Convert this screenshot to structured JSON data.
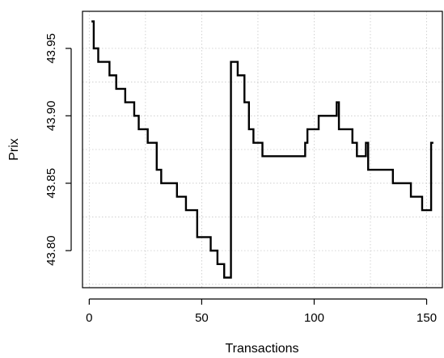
{
  "chart_data": {
    "type": "line",
    "title": "",
    "xlabel": "Transactions",
    "ylabel": "Prix",
    "xlim": [
      -3,
      157
    ],
    "ylim": [
      43.7725,
      43.9775
    ],
    "x_ticks": [
      0,
      50,
      100,
      150
    ],
    "x_tick_labels": [
      "0",
      "50",
      "100",
      "150"
    ],
    "y_ticks": [
      43.8,
      43.85,
      43.9,
      43.95
    ],
    "y_tick_labels": [
      "43.80",
      "43.85",
      "43.90",
      "43.95"
    ],
    "grid": true,
    "line_color": "#000000",
    "step": "post",
    "series": [
      {
        "points": [
          [
            1,
            43.97
          ],
          [
            2,
            43.95
          ],
          [
            3,
            43.95
          ],
          [
            4,
            43.94
          ],
          [
            5,
            43.94
          ],
          [
            6,
            43.94
          ],
          [
            7,
            43.94
          ],
          [
            8,
            43.94
          ],
          [
            9,
            43.93
          ],
          [
            10,
            43.93
          ],
          [
            11,
            43.93
          ],
          [
            12,
            43.92
          ],
          [
            13,
            43.92
          ],
          [
            14,
            43.92
          ],
          [
            15,
            43.92
          ],
          [
            16,
            43.91
          ],
          [
            17,
            43.91
          ],
          [
            18,
            43.91
          ],
          [
            19,
            43.91
          ],
          [
            20,
            43.9
          ],
          [
            21,
            43.9
          ],
          [
            22,
            43.89
          ],
          [
            23,
            43.89
          ],
          [
            24,
            43.89
          ],
          [
            25,
            43.89
          ],
          [
            26,
            43.88
          ],
          [
            27,
            43.88
          ],
          [
            28,
            43.88
          ],
          [
            29,
            43.88
          ],
          [
            30,
            43.86
          ],
          [
            31,
            43.86
          ],
          [
            32,
            43.85
          ],
          [
            33,
            43.85
          ],
          [
            34,
            43.85
          ],
          [
            35,
            43.85
          ],
          [
            36,
            43.85
          ],
          [
            37,
            43.85
          ],
          [
            38,
            43.85
          ],
          [
            39,
            43.84
          ],
          [
            40,
            43.84
          ],
          [
            41,
            43.84
          ],
          [
            42,
            43.84
          ],
          [
            43,
            43.83
          ],
          [
            44,
            43.83
          ],
          [
            45,
            43.83
          ],
          [
            46,
            43.83
          ],
          [
            47,
            43.83
          ],
          [
            48,
            43.81
          ],
          [
            49,
            43.81
          ],
          [
            50,
            43.81
          ],
          [
            51,
            43.81
          ],
          [
            52,
            43.81
          ],
          [
            53,
            43.81
          ],
          [
            54,
            43.8
          ],
          [
            55,
            43.8
          ],
          [
            56,
            43.8
          ],
          [
            57,
            43.79
          ],
          [
            58,
            43.79
          ],
          [
            59,
            43.79
          ],
          [
            60,
            43.78
          ],
          [
            61,
            43.78
          ],
          [
            62,
            43.78
          ],
          [
            63,
            43.94
          ],
          [
            64,
            43.94
          ],
          [
            65,
            43.94
          ],
          [
            66,
            43.93
          ],
          [
            67,
            43.93
          ],
          [
            68,
            43.93
          ],
          [
            69,
            43.91
          ],
          [
            70,
            43.91
          ],
          [
            71,
            43.89
          ],
          [
            72,
            43.89
          ],
          [
            73,
            43.88
          ],
          [
            74,
            43.88
          ],
          [
            75,
            43.88
          ],
          [
            76,
            43.88
          ],
          [
            77,
            43.87
          ],
          [
            78,
            43.87
          ],
          [
            80,
            43.87
          ],
          [
            85,
            43.87
          ],
          [
            90,
            43.87
          ],
          [
            95,
            43.87
          ],
          [
            96,
            43.88
          ],
          [
            97,
            43.89
          ],
          [
            98,
            43.89
          ],
          [
            99,
            43.89
          ],
          [
            100,
            43.89
          ],
          [
            101,
            43.89
          ],
          [
            102,
            43.9
          ],
          [
            104,
            43.9
          ],
          [
            106,
            43.9
          ],
          [
            108,
            43.9
          ],
          [
            109,
            43.9
          ],
          [
            110,
            43.91
          ],
          [
            111,
            43.89
          ],
          [
            112,
            43.89
          ],
          [
            114,
            43.89
          ],
          [
            116,
            43.89
          ],
          [
            117,
            43.88
          ],
          [
            118,
            43.88
          ],
          [
            119,
            43.87
          ],
          [
            120,
            43.87
          ],
          [
            121,
            43.87
          ],
          [
            122,
            43.87
          ],
          [
            123,
            43.88
          ],
          [
            124,
            43.86
          ],
          [
            125,
            43.86
          ],
          [
            126,
            43.86
          ],
          [
            128,
            43.86
          ],
          [
            130,
            43.86
          ],
          [
            132,
            43.86
          ],
          [
            134,
            43.86
          ],
          [
            135,
            43.85
          ],
          [
            137,
            43.85
          ],
          [
            139,
            43.85
          ],
          [
            141,
            43.85
          ],
          [
            142,
            43.85
          ],
          [
            143,
            43.84
          ],
          [
            144,
            43.84
          ],
          [
            145,
            43.84
          ],
          [
            146,
            43.84
          ],
          [
            147,
            43.84
          ],
          [
            148,
            43.83
          ],
          [
            149,
            43.83
          ],
          [
            150,
            43.83
          ],
          [
            151,
            43.83
          ],
          [
            152,
            43.88
          ],
          [
            153,
            43.88
          ]
        ]
      }
    ]
  }
}
